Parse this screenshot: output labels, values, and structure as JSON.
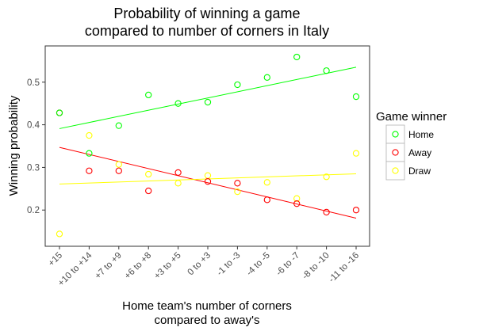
{
  "chart_data": {
    "type": "scatter",
    "title_lines": [
      "Probability of winning a game",
      "compared to number of corners in Italy"
    ],
    "xlabel_lines": [
      "Home team's number of corners",
      "compared to away's"
    ],
    "ylabel": "Winning probability",
    "categories": [
      "+15",
      "+10 to +14",
      "+7 to +9",
      "+6 to +8",
      "+3 to +5",
      "0 to +3",
      "-1 to -3",
      "-4 to -5",
      "-6 to -7",
      "-8 to -10",
      "-11 to -16"
    ],
    "ylim": [
      0.115,
      0.585
    ],
    "yticks": [
      0.2,
      0.3,
      0.4,
      0.5
    ],
    "ytick_labels": [
      "0.2",
      "0.3",
      "0.4",
      "0.5"
    ],
    "grid": false,
    "legend": {
      "title": "Game winner",
      "placement": "right"
    },
    "series": [
      {
        "name": "Home",
        "color": "#00ff00",
        "values": [
          0.428,
          0.333,
          0.398,
          0.47,
          0.45,
          0.453,
          0.494,
          0.511,
          0.559,
          0.527,
          0.466
        ],
        "trend": [
          0.391,
          0.535
        ]
      },
      {
        "name": "Away",
        "color": "#ff0000",
        "values": [
          0.428,
          0.292,
          0.292,
          0.245,
          0.288,
          0.267,
          0.263,
          0.224,
          0.215,
          0.195,
          0.2
        ],
        "trend": [
          0.347,
          0.181
        ]
      },
      {
        "name": "Draw",
        "color": "#ffff00",
        "values": [
          0.144,
          0.375,
          0.307,
          0.284,
          0.263,
          0.281,
          0.243,
          0.265,
          0.227,
          0.278,
          0.333
        ],
        "trend": [
          0.261,
          0.285
        ]
      }
    ]
  }
}
